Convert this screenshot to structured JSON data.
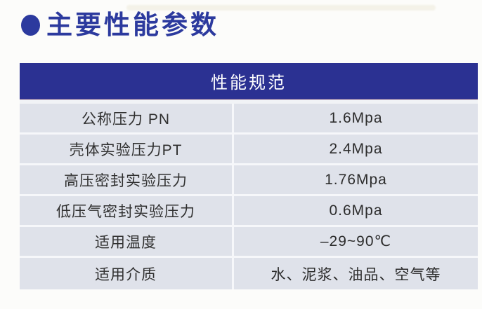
{
  "page": {
    "title": "主要性能参数"
  },
  "table": {
    "header": "性能规范",
    "rows": [
      {
        "label": "公称压力 PN",
        "value": "1.6Mpa"
      },
      {
        "label": "壳体实验压力PT",
        "value": "2.4Mpa"
      },
      {
        "label": "高压密封实验压力",
        "value": "1.76Mpa"
      },
      {
        "label": "低压气密封实验压力",
        "value": "0.6Mpa"
      },
      {
        "label": "适用温度",
        "value": "–29~90℃"
      },
      {
        "label": "适用介质",
        "value": "水、泥浆、油品、空气等"
      }
    ]
  },
  "colors": {
    "title_blue": "#2c3a9e",
    "header_blue": "#2b3192",
    "row_background": "#dfe2ea",
    "separator": "#f6f7fa",
    "text": "#2f2f2f",
    "page_background": "#fcfcfa"
  }
}
